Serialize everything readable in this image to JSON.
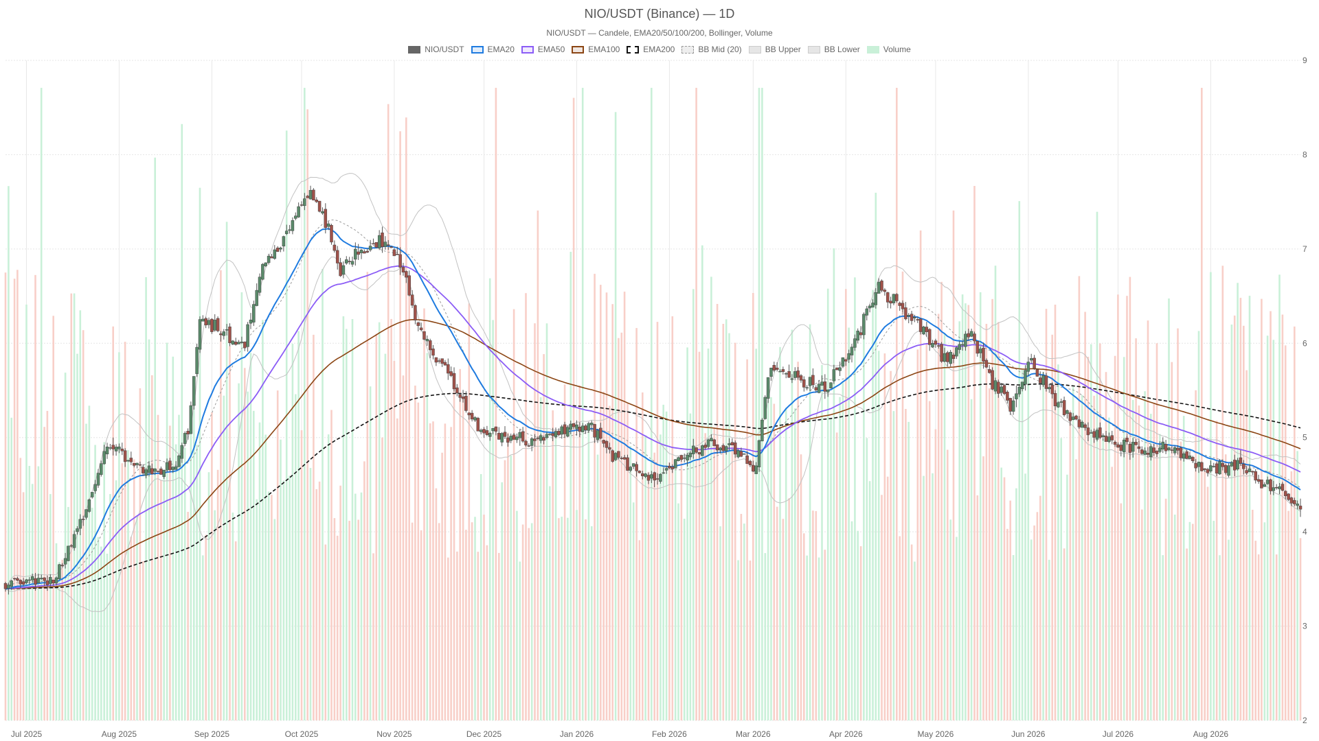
{
  "chart_data": {
    "type": "candlestick",
    "title": "NIO/USDT (Binance) — 1D",
    "subtitle": "NIO/USDT — Candele, EMA20/50/100/200, Bollinger, Volume",
    "y_ticks": [
      "2",
      "3",
      "4",
      "5",
      "6",
      "7",
      "8",
      "9"
    ],
    "ylim": [
      2,
      9
    ],
    "x_ticks": [
      {
        "label": "Jul 2025",
        "date": "2025-07-01"
      },
      {
        "label": "Aug 2025",
        "date": "2025-08-01"
      },
      {
        "label": "Sep 2025",
        "date": "2025-09-01"
      },
      {
        "label": "Oct 2025",
        "date": "2025-10-01"
      },
      {
        "label": "Nov 2025",
        "date": "2025-11-01"
      },
      {
        "label": "Dec 2025",
        "date": "2025-12-01"
      },
      {
        "label": "Jan 2026",
        "date": "2026-01-01"
      },
      {
        "label": "Feb 2026",
        "date": "2026-02-01"
      },
      {
        "label": "Mar 2026",
        "date": "2026-03-01"
      },
      {
        "label": "Apr 2026",
        "date": "2026-04-01"
      },
      {
        "label": "May 2026",
        "date": "2026-05-01"
      },
      {
        "label": "Jun 2026",
        "date": "2026-06-01"
      },
      {
        "label": "Jul 2026",
        "date": "2026-07-01"
      },
      {
        "label": "Aug 2026",
        "date": "2026-08-01"
      }
    ],
    "x_range": [
      "2025-06-24",
      "2026-08-31"
    ],
    "legend": [
      {
        "name": "NIO/USDT",
        "color": "#666666",
        "style": "solid-fill"
      },
      {
        "name": "EMA20",
        "color": "#1e7be0",
        "style": "line"
      },
      {
        "name": "EMA50",
        "color": "#8b5cf6",
        "style": "line"
      },
      {
        "name": "EMA100",
        "color": "#8b4513",
        "style": "line"
      },
      {
        "name": "EMA200",
        "color": "#111111",
        "style": "dashed"
      },
      {
        "name": "BB Mid (20)",
        "color": "#999999",
        "style": "dotted"
      },
      {
        "name": "BB Upper",
        "color": "#bbbbbb",
        "style": "line"
      },
      {
        "name": "BB Lower",
        "color": "#bbbbbb",
        "style": "line"
      },
      {
        "name": "Volume",
        "color": "#a8e6c4",
        "style": "fill"
      }
    ],
    "colors": {
      "up": "#5a8a6a",
      "down": "#a0524a",
      "vol_up": "#c9f0d8",
      "vol_down": "#f8cfc8"
    },
    "price_anchors": [
      [
        "2025-06-24",
        3.45
      ],
      [
        "2025-07-10",
        3.5
      ],
      [
        "2025-07-20",
        4.1
      ],
      [
        "2025-07-28",
        4.95
      ],
      [
        "2025-08-05",
        4.75
      ],
      [
        "2025-08-12",
        4.65
      ],
      [
        "2025-08-20",
        4.7
      ],
      [
        "2025-08-24",
        5.05
      ],
      [
        "2025-08-28",
        6.3
      ],
      [
        "2025-09-05",
        6.1
      ],
      [
        "2025-09-12",
        6.0
      ],
      [
        "2025-09-18",
        6.8
      ],
      [
        "2025-09-25",
        7.1
      ],
      [
        "2025-10-03",
        7.6
      ],
      [
        "2025-10-08",
        7.4
      ],
      [
        "2025-10-14",
        6.8
      ],
      [
        "2025-10-20",
        6.95
      ],
      [
        "2025-10-28",
        7.1
      ],
      [
        "2025-11-03",
        6.9
      ],
      [
        "2025-11-08",
        6.3
      ],
      [
        "2025-11-13",
        5.9
      ],
      [
        "2025-11-20",
        5.65
      ],
      [
        "2025-11-28",
        5.15
      ],
      [
        "2025-12-05",
        5.05
      ],
      [
        "2025-12-15",
        4.95
      ],
      [
        "2025-12-25",
        5.05
      ],
      [
        "2026-01-05",
        5.15
      ],
      [
        "2026-01-15",
        4.75
      ],
      [
        "2026-01-25",
        4.55
      ],
      [
        "2026-02-05",
        4.75
      ],
      [
        "2026-02-15",
        4.95
      ],
      [
        "2026-02-25",
        4.85
      ],
      [
        "2026-03-02",
        4.65
      ],
      [
        "2026-03-06",
        5.7
      ],
      [
        "2026-03-15",
        5.65
      ],
      [
        "2026-03-25",
        5.5
      ],
      [
        "2026-04-05",
        6.1
      ],
      [
        "2026-04-12",
        6.6
      ],
      [
        "2026-04-20",
        6.35
      ],
      [
        "2026-04-28",
        6.1
      ],
      [
        "2026-05-05",
        5.8
      ],
      [
        "2026-05-13",
        6.1
      ],
      [
        "2026-05-20",
        5.55
      ],
      [
        "2026-05-26",
        5.35
      ],
      [
        "2026-06-02",
        5.85
      ],
      [
        "2026-06-10",
        5.35
      ],
      [
        "2026-06-20",
        5.1
      ],
      [
        "2026-06-30",
        4.95
      ],
      [
        "2026-07-10",
        4.85
      ],
      [
        "2026-07-20",
        4.9
      ],
      [
        "2026-07-30",
        4.65
      ],
      [
        "2026-08-10",
        4.7
      ],
      [
        "2026-08-20",
        4.5
      ],
      [
        "2026-08-31",
        4.3
      ]
    ],
    "volume_range": [
      0.25,
      0.92
    ]
  }
}
